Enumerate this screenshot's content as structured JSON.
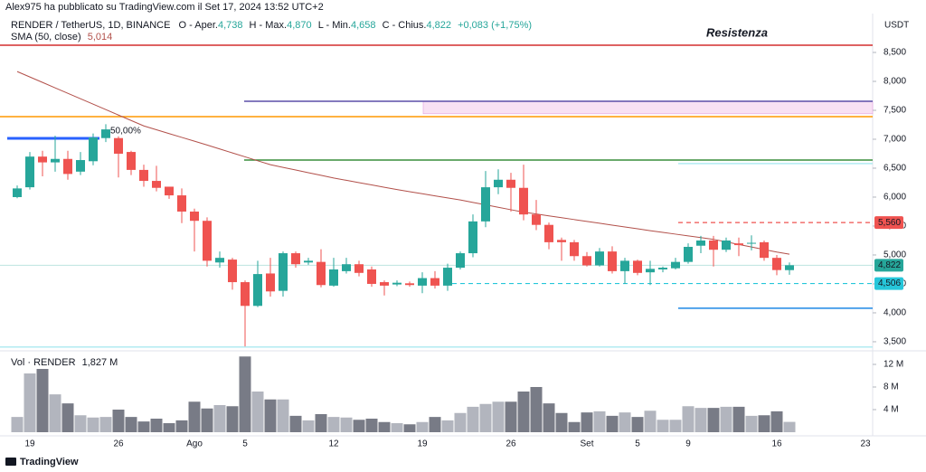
{
  "header": {
    "publisher": "Alex975 ha pubblicato su TradingView.com il Set 17, 2024 13:52 UTC+2",
    "symbol": "RENDER / TetherUS, 1D, BINANCE",
    "legend": [
      {
        "name": "O - Aper.",
        "value": "4,738"
      },
      {
        "name": "H - Max.",
        "value": "4,870"
      },
      {
        "name": "L - Min.",
        "value": "4,658"
      },
      {
        "name": "C - Chius.",
        "value": "4,822"
      }
    ],
    "change": "+0,083 (+1,75%)",
    "sma_name": "SMA (50, close)",
    "sma_value": "5,014",
    "vol_name": "Vol · RENDER",
    "vol_value": "1,827 M",
    "currency": "USDT",
    "footer": "TradingView"
  },
  "chart_data": {
    "type": "candlestick",
    "categories": [
      null,
      "19",
      null,
      null,
      null,
      null,
      null,
      null,
      "26",
      null,
      null,
      null,
      null,
      null,
      "Ago",
      null,
      null,
      null,
      "5",
      null,
      null,
      null,
      null,
      null,
      null,
      "12",
      null,
      null,
      null,
      null,
      null,
      null,
      "19",
      null,
      null,
      null,
      null,
      null,
      null,
      "26",
      null,
      null,
      null,
      null,
      null,
      "Set",
      null,
      null,
      null,
      "5",
      null,
      null,
      null,
      "9",
      null,
      null,
      null,
      null,
      null,
      null,
      "16",
      null,
      null,
      null,
      null,
      null,
      null,
      "23"
    ],
    "open": [
      6000,
      6170,
      6700,
      6600,
      6660,
      6440,
      6620,
      7020,
      7020,
      6780,
      6470,
      6280,
      6180,
      6030,
      5750,
      5590,
      4870,
      4920,
      4530,
      4120,
      4680,
      4380,
      5030,
      4870,
      4880,
      4470,
      4720,
      4840,
      4750,
      4530,
      4490,
      4510,
      4470,
      4600,
      4470,
      4780,
      5030,
      5580,
      6170,
      6300,
      6160,
      5700,
      5520,
      5260,
      5220,
      4980,
      4820,
      5060,
      4720,
      4900,
      4700,
      4750,
      4770,
      4880,
      5160,
      5250,
      5090,
      5200,
      5200,
      5220,
      4950,
      4738,
      null,
      null,
      null,
      null,
      null,
      null
    ],
    "high": [
      6200,
      6780,
      6800,
      7060,
      6800,
      6780,
      7100,
      7260,
      7050,
      6800,
      6560,
      6540,
      6180,
      6150,
      5800,
      5650,
      5060,
      4950,
      4560,
      4900,
      4950,
      5060,
      5060,
      4950,
      5100,
      4950,
      4950,
      4900,
      4800,
      4560,
      4560,
      4540,
      4700,
      4720,
      4850,
      5060,
      5700,
      6450,
      6480,
      6420,
      6560,
      5950,
      5560,
      5300,
      5260,
      5050,
      5120,
      5150,
      4950,
      4920,
      4900,
      4800,
      4950,
      5200,
      5330,
      5330,
      5300,
      5300,
      5340,
      5250,
      5000,
      4870,
      null,
      null,
      null,
      null,
      null,
      null
    ],
    "low": [
      5980,
      6130,
      6360,
      6440,
      6300,
      6380,
      6550,
      6950,
      6340,
      6380,
      6180,
      6100,
      5970,
      5550,
      5060,
      4800,
      4780,
      4400,
      3420,
      4100,
      4280,
      4280,
      4780,
      4830,
      4440,
      4450,
      4680,
      4630,
      4450,
      4300,
      4460,
      4450,
      4340,
      4420,
      4380,
      4750,
      4960,
      5480,
      6050,
      5750,
      5600,
      5430,
      5100,
      4900,
      4900,
      4800,
      4800,
      4680,
      4500,
      4650,
      4480,
      4700,
      4750,
      4850,
      5030,
      4800,
      5050,
      4980,
      5080,
      4900,
      4650,
      4658,
      null,
      null,
      null,
      null,
      null,
      null
    ],
    "close": [
      6150,
      6700,
      6600,
      6660,
      6400,
      6640,
      7030,
      7170,
      6750,
      6470,
      6280,
      6160,
      6030,
      5750,
      5590,
      4900,
      4950,
      4530,
      4120,
      4670,
      4370,
      5030,
      4840,
      4900,
      4480,
      4750,
      4840,
      4690,
      4500,
      4470,
      4520,
      4480,
      4600,
      4470,
      4780,
      5030,
      5580,
      6170,
      6300,
      6160,
      5700,
      5520,
      5220,
      5220,
      4980,
      4820,
      5060,
      4720,
      4900,
      4690,
      4760,
      4780,
      4880,
      5140,
      5250,
      5090,
      5250,
      5170,
      5210,
      4950,
      4739,
      4822,
      null,
      null,
      null,
      null,
      null,
      null
    ],
    "volume": [
      2.7,
      10.4,
      11.2,
      6.7,
      5.1,
      3.0,
      2.6,
      2.7,
      4.0,
      2.7,
      1.9,
      2.4,
      1.6,
      2.1,
      5.4,
      4.2,
      4.8,
      4.6,
      13.4,
      7.2,
      5.8,
      5.8,
      2.9,
      2.1,
      3.2,
      2.7,
      2.6,
      2.2,
      2.4,
      1.8,
      1.6,
      1.4,
      1.8,
      2.7,
      2.1,
      3.4,
      4.5,
      5.0,
      5.4,
      5.4,
      7.2,
      8.0,
      5.1,
      3.4,
      1.8,
      3.5,
      3.7,
      2.9,
      3.5,
      2.7,
      3.8,
      2.2,
      2.2,
      4.6,
      4.3,
      4.3,
      4.5,
      4.5,
      2.9,
      3.0,
      3.7,
      1.827,
      null,
      null,
      null,
      null,
      null,
      null
    ],
    "sma": [
      8170,
      8076,
      7982,
      7888,
      7794,
      7700,
      7606,
      7512,
      7418,
      7324,
      7230,
      7164,
      7098,
      7032,
      6966,
      6900,
      6832,
      6764,
      6696,
      6628,
      6560,
      6514,
      6468,
      6422,
      6376,
      6330,
      6290,
      6250,
      6210,
      6170,
      6130,
      6094,
      6058,
      6022,
      5986,
      5950,
      5908,
      5866,
      5824,
      5782,
      5740,
      5708,
      5676,
      5644,
      5612,
      5580,
      5548,
      5516,
      5484,
      5452,
      5420,
      5390,
      5360,
      5330,
      5300,
      5270,
      5226,
      5182,
      5138,
      5094,
      5050,
      5014,
      null,
      null,
      null,
      null,
      null,
      null
    ],
    "up_color": "#26a69a",
    "down_color": "#ef5350",
    "sma_color": "#b2504a",
    "volume_up_color": "#b2b5be",
    "volume_down_color": "#787b86",
    "ylim": [
      3390,
      9125
    ],
    "yticks": [
      {
        "value": 3500,
        "label": "3,500"
      },
      {
        "value": 4000,
        "label": "4,000"
      },
      {
        "value": 4500,
        "label": "4,500"
      },
      {
        "value": 5000,
        "label": "5,000"
      },
      {
        "value": 5500,
        "label": "5,500"
      },
      {
        "value": 6000,
        "label": "6,000"
      },
      {
        "value": 6500,
        "label": "6,500"
      },
      {
        "value": 7000,
        "label": "7,000"
      },
      {
        "value": 7500,
        "label": "7,500"
      },
      {
        "value": 8000,
        "label": "8,000"
      },
      {
        "value": 8500,
        "label": "8,500"
      }
    ],
    "vlim": [
      0,
      14.08
    ],
    "vticks": [
      {
        "value": 4,
        "label": "4 M"
      },
      {
        "value": 8,
        "label": "8 M"
      },
      {
        "value": 12,
        "label": "12 M"
      }
    ],
    "levels": [
      {
        "value": 8625,
        "color": "#d32f2f"
      },
      {
        "value": 7656,
        "color": "#5b4ea8"
      },
      {
        "value": 7390,
        "color": "#ff9800"
      },
      {
        "value": 7016,
        "color": "#2962ff"
      },
      {
        "value": 6640,
        "color": "#388e3c"
      },
      {
        "value": 6580,
        "color": "#b2ebf2"
      },
      {
        "value": 5560,
        "color": "#ef5350",
        "label": "5,560"
      },
      {
        "value": 4506,
        "color": "#26c6da",
        "label": "4,506"
      },
      {
        "value": 4080,
        "color": "#1e88e5"
      },
      {
        "value": 3410,
        "color": "#b2ebf2"
      },
      {
        "value": 4822,
        "color": "#26a69a",
        "label": "4,822"
      }
    ],
    "zone": {
      "values": [
        7440,
        7656
      ],
      "color": "#f8e1f4"
    },
    "annotations": [
      "Resistenza",
      "50,00%"
    ]
  }
}
